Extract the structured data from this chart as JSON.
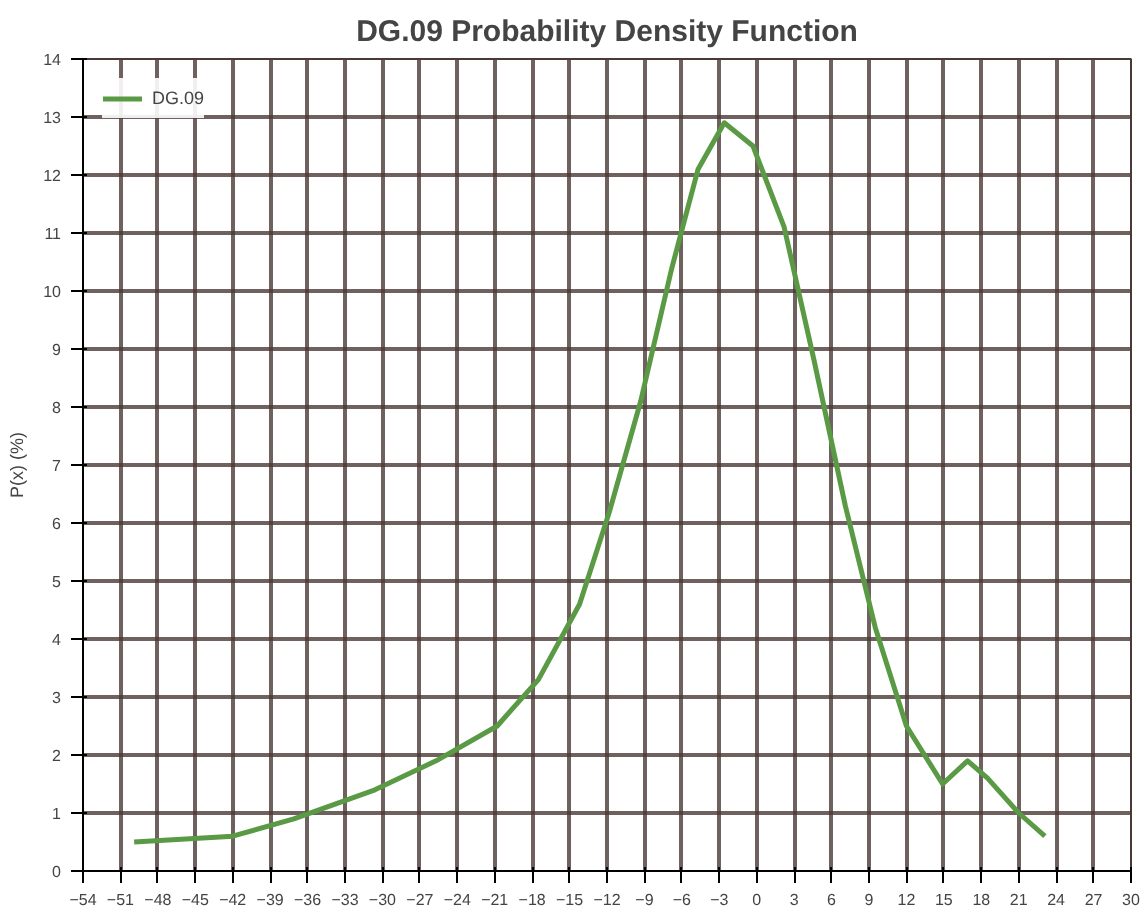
{
  "chart_data": {
    "type": "line",
    "title": "DG.09 Probability Density Function",
    "ylabel": "P(x) (%)",
    "series": [
      {
        "name": "DG.09",
        "color": "#5a9a45",
        "x": [
          -49.9,
          -42,
          -37.1,
          -30.6,
          -25.7,
          -20.8,
          -17.5,
          -14.2,
          -11.8,
          -9.3,
          -6.8,
          -4.7,
          -2.6,
          -0.3,
          2.2,
          4.6,
          7.1,
          9.5,
          12.0,
          14.9,
          16.9,
          18.5,
          21.0,
          23.1
        ],
        "values": [
          0.5,
          0.6,
          0.9,
          1.4,
          1.9,
          2.5,
          3.3,
          4.6,
          6.2,
          8.1,
          10.4,
          12.1,
          12.9,
          12.5,
          11.1,
          8.8,
          6.3,
          4.2,
          2.5,
          1.5,
          1.9,
          1.6,
          1.0,
          0.6
        ]
      }
    ],
    "xlim": [
      -54,
      30
    ],
    "xticks": [
      -54,
      -51,
      -48,
      -45,
      -42,
      -39,
      -36,
      -33,
      -30,
      -27,
      -24,
      -21,
      -18,
      -15,
      -12,
      -9,
      -6,
      -3,
      0,
      3,
      6,
      9,
      12,
      15,
      18,
      21,
      24,
      27,
      30
    ],
    "ylim": [
      0,
      14
    ],
    "yticks": [
      0,
      1,
      2,
      3,
      4,
      5,
      6,
      7,
      8,
      9,
      10,
      11,
      12,
      13,
      14
    ],
    "grid": true,
    "legend": "top left",
    "marker": "none",
    "line_style": "solid"
  }
}
